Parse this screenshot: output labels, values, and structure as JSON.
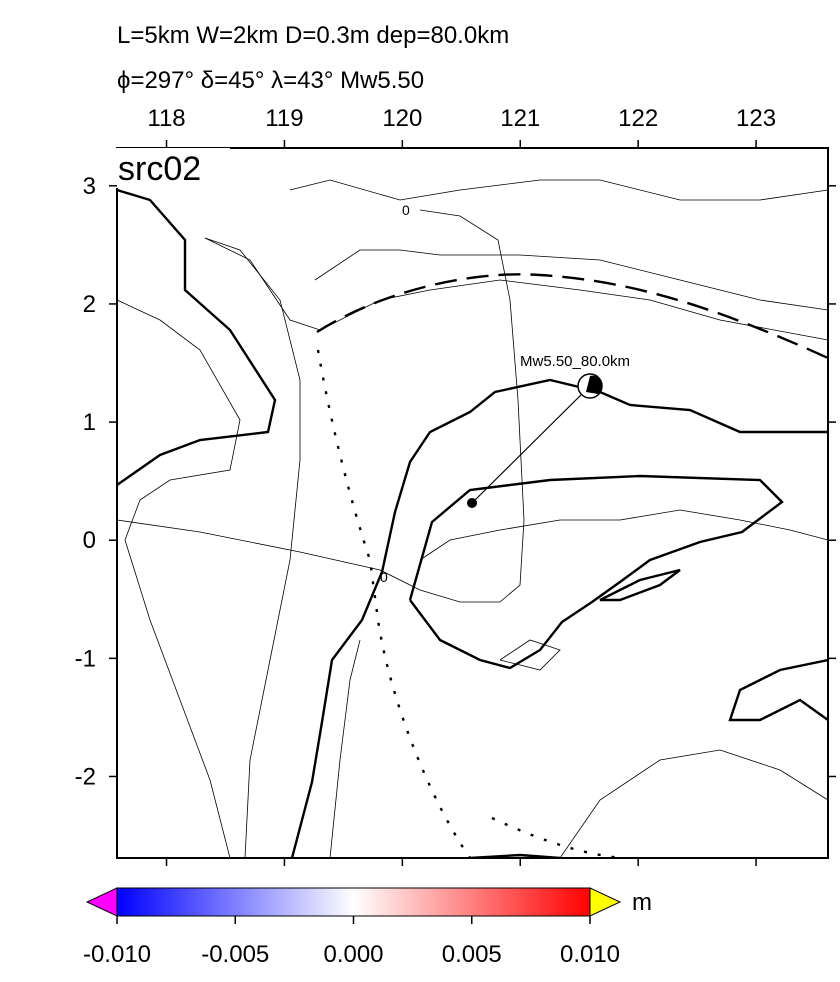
{
  "chart_data": {
    "type": "map",
    "title": "L=5km W=2km D=0.3m dep=80.0km",
    "subtitle": "ϕ=297° δ=45° λ=43° Mw5.50",
    "panel_label": "src02",
    "event_label": "Mw5.50_80.0km",
    "contour_labels": [
      "0",
      "0"
    ],
    "xlim": [
      117.58,
      123.61
    ],
    "ylim": [
      -2.69,
      3.32
    ],
    "xticks": [
      118,
      119,
      120,
      121,
      122,
      123
    ],
    "yticks": [
      3,
      2,
      1,
      0,
      -1,
      -2
    ],
    "colorbar": {
      "unit": "m",
      "clim": [
        -0.01,
        0.01
      ],
      "ticks": [
        {
          "value": -0.01,
          "label": "-0.010"
        },
        {
          "value": -0.005,
          "label": "-0.005"
        },
        {
          "value": 0,
          "label": "0.000"
        },
        {
          "value": 0.005,
          "label": "0.005"
        },
        {
          "value": 0.01,
          "label": "0.010"
        }
      ]
    }
  }
}
